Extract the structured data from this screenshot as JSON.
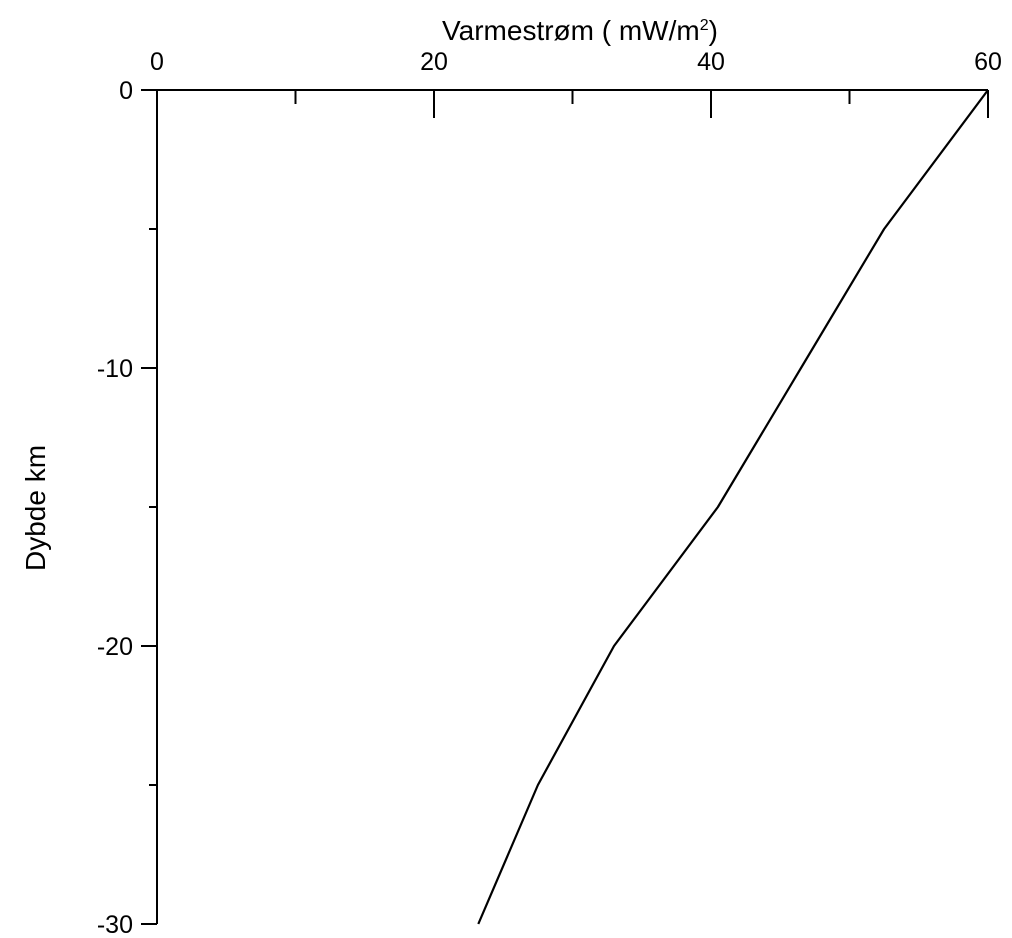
{
  "chart_data": {
    "type": "line",
    "xlabel": "Varmestrøm  ( mW/m",
    "xlabel_sup": "2",
    "xlabel_end": ")",
    "ylabel": "Dybde km",
    "xlim": [
      0,
      60
    ],
    "ylim": [
      -30,
      0
    ],
    "x_ticks": [
      0,
      20,
      40,
      60
    ],
    "x_tick_labels": [
      "0",
      "20",
      "40",
      "60"
    ],
    "x_minor_ticks": [
      10,
      30,
      50
    ],
    "y_ticks": [
      0,
      -10,
      -20,
      -30
    ],
    "y_tick_labels": [
      "0",
      "-10",
      "-20",
      "-30"
    ],
    "y_minor_ticks": [
      -5,
      -15,
      -25
    ],
    "grid": false,
    "x_axis_position": "top",
    "series": [
      {
        "x": [
          60,
          52.5,
          46.5,
          40.5,
          33,
          27.5,
          23.2
        ],
        "y": [
          0,
          -5,
          -10,
          -15,
          -20,
          -25,
          -30
        ]
      }
    ],
    "colors": {
      "line": "#000000",
      "axis": "#000000"
    }
  }
}
